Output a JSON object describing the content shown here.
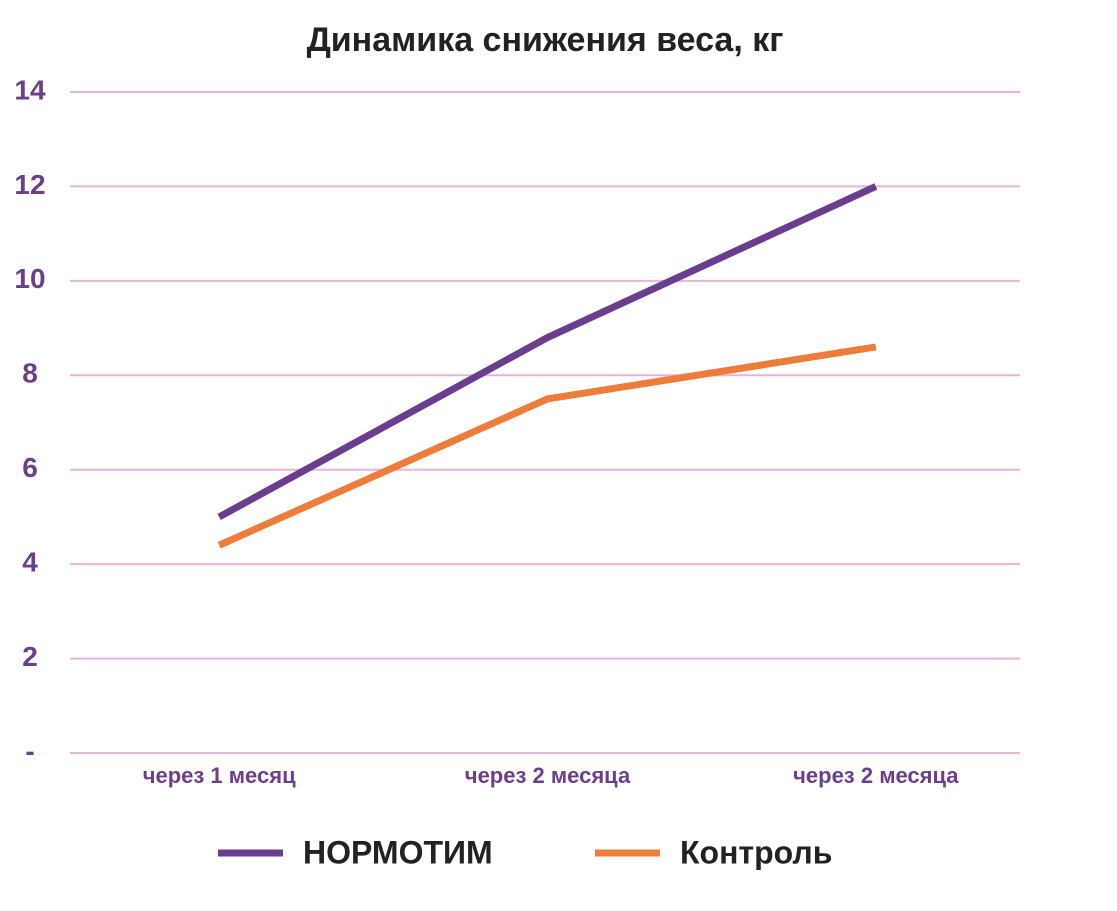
{
  "chart_data": {
    "type": "line",
    "title": "Динамика снижения веса, кг",
    "categories": [
      "через 1 месяц",
      "через 2 месяца",
      "через 2 месяца"
    ],
    "series": [
      {
        "name": "НОРМОТИМ",
        "color": "#6a3d8f",
        "values": [
          5.0,
          8.8,
          12.0
        ]
      },
      {
        "name": "Контроль",
        "color": "#ee7d3b",
        "values": [
          4.4,
          7.5,
          8.6
        ]
      }
    ],
    "ylim": [
      0,
      14
    ],
    "yticks": [
      {
        "value": 0,
        "label": "-"
      },
      2,
      4,
      6,
      8,
      10,
      12,
      14
    ],
    "grid": true
  }
}
